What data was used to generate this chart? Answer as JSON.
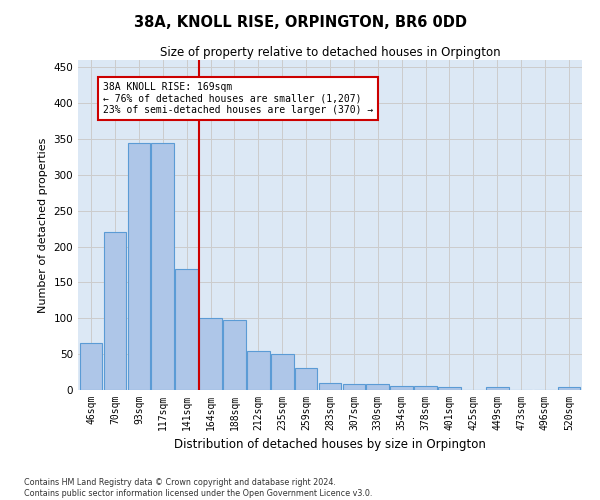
{
  "title": "38A, KNOLL RISE, ORPINGTON, BR6 0DD",
  "subtitle": "Size of property relative to detached houses in Orpington",
  "xlabel": "Distribution of detached houses by size in Orpington",
  "ylabel": "Number of detached properties",
  "categories": [
    "46sqm",
    "70sqm",
    "93sqm",
    "117sqm",
    "141sqm",
    "164sqm",
    "188sqm",
    "212sqm",
    "235sqm",
    "259sqm",
    "283sqm",
    "307sqm",
    "330sqm",
    "354sqm",
    "378sqm",
    "401sqm",
    "425sqm",
    "449sqm",
    "473sqm",
    "496sqm",
    "520sqm"
  ],
  "values": [
    65,
    220,
    345,
    345,
    168,
    100,
    98,
    55,
    50,
    30,
    10,
    8,
    8,
    5,
    5,
    4,
    0,
    4,
    0,
    0,
    4
  ],
  "bar_color": "#aec6e8",
  "bar_edge_color": "#5b9bd5",
  "vline_x": 4.5,
  "annotation_text_line1": "38A KNOLL RISE: 169sqm",
  "annotation_text_line2": "← 76% of detached houses are smaller (1,207)",
  "annotation_text_line3": "23% of semi-detached houses are larger (370) →",
  "annotation_box_color": "#ffffff",
  "annotation_box_edge": "#cc0000",
  "vline_color": "#cc0000",
  "ylim": [
    0,
    460
  ],
  "yticks": [
    0,
    50,
    100,
    150,
    200,
    250,
    300,
    350,
    400,
    450
  ],
  "grid_color": "#cccccc",
  "background_color": "#dce8f5",
  "footer_line1": "Contains HM Land Registry data © Crown copyright and database right 2024.",
  "footer_line2": "Contains public sector information licensed under the Open Government Licence v3.0."
}
